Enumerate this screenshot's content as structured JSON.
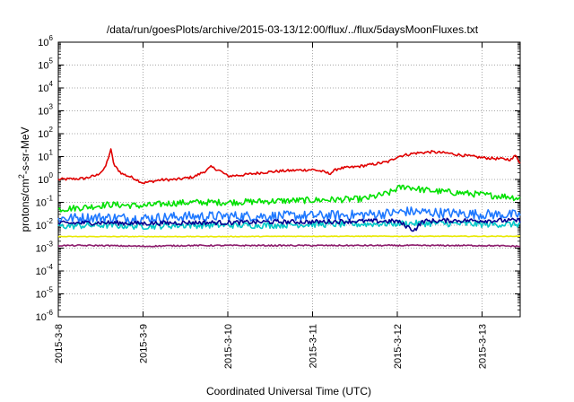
{
  "chart_data": {
    "type": "line",
    "title": "/data/run/goesPlots/archive/2015-03-13/12:00/flux/../flux/5daysMoonFluxes.txt",
    "xlabel": "Coordinated Universal Time (UTC)",
    "ylabel": {
      "prefix": "protons/cm",
      "superscript": "2",
      "suffix": "-s-sr-MeV"
    },
    "x_axis": {
      "unit": "days from 2015-03-08 00:00 UTC",
      "range": [
        0,
        5.45
      ],
      "ticks": [
        {
          "value": 0,
          "label": "2015-3-8"
        },
        {
          "value": 1,
          "label": "2015-3-9"
        },
        {
          "value": 2,
          "label": "2015-3-10"
        },
        {
          "value": 3,
          "label": "2015-3-11"
        },
        {
          "value": 4,
          "label": "2015-3-12"
        },
        {
          "value": 5,
          "label": "2015-3-13"
        }
      ]
    },
    "y_axis": {
      "scale": "log",
      "exponent_range": [
        -6,
        6
      ],
      "ticks": [
        {
          "base": "10",
          "exp": "-6"
        },
        {
          "base": "10",
          "exp": "-5"
        },
        {
          "base": "10",
          "exp": "-4"
        },
        {
          "base": "10",
          "exp": "-3"
        },
        {
          "base": "10",
          "exp": "-2"
        },
        {
          "base": "10",
          "exp": "-1"
        },
        {
          "base": "10",
          "exp": "0"
        },
        {
          "base": "10",
          "exp": "1"
        },
        {
          "base": "10",
          "exp": "2"
        },
        {
          "base": "10",
          "exp": "3"
        },
        {
          "base": "10",
          "exp": "4"
        },
        {
          "base": "10",
          "exp": "5"
        },
        {
          "base": "10",
          "exp": "6"
        }
      ]
    },
    "grid": "dotted",
    "legend": "none",
    "series": [
      {
        "color": "#e00000",
        "points": [
          [
            0,
            1.0
          ],
          [
            0.15,
            1.05
          ],
          [
            0.3,
            1.1
          ],
          [
            0.45,
            1.5
          ],
          [
            0.55,
            3.0
          ],
          [
            0.62,
            20.0
          ],
          [
            0.66,
            4.0
          ],
          [
            0.75,
            1.8
          ],
          [
            0.9,
            1.1
          ],
          [
            1.0,
            0.7
          ],
          [
            1.2,
            0.95
          ],
          [
            1.4,
            1.0
          ],
          [
            1.6,
            1.3
          ],
          [
            1.75,
            2.5
          ],
          [
            1.8,
            3.5
          ],
          [
            1.9,
            2.5
          ],
          [
            2.0,
            1.4
          ],
          [
            2.2,
            1.6
          ],
          [
            2.4,
            2.0
          ],
          [
            2.6,
            2.3
          ],
          [
            2.8,
            2.5
          ],
          [
            3.0,
            2.7
          ],
          [
            3.1,
            2.3
          ],
          [
            3.2,
            1.8
          ],
          [
            3.3,
            3.0
          ],
          [
            3.5,
            3.5
          ],
          [
            3.7,
            4.5
          ],
          [
            3.9,
            6.0
          ],
          [
            4.0,
            10.0
          ],
          [
            4.2,
            14.0
          ],
          [
            4.4,
            16.0
          ],
          [
            4.6,
            14.0
          ],
          [
            4.8,
            11.0
          ],
          [
            5.0,
            9.0
          ],
          [
            5.2,
            8.0
          ],
          [
            5.35,
            7.5
          ],
          [
            5.4,
            12.0
          ],
          [
            5.45,
            5.0
          ]
        ]
      },
      {
        "color": "#00e000",
        "points": [
          [
            0,
            0.05
          ],
          [
            0.3,
            0.06
          ],
          [
            0.6,
            0.08
          ],
          [
            1.0,
            0.07
          ],
          [
            1.3,
            0.09
          ],
          [
            1.6,
            0.1
          ],
          [
            2.0,
            0.1
          ],
          [
            2.4,
            0.11
          ],
          [
            2.8,
            0.12
          ],
          [
            3.2,
            0.13
          ],
          [
            3.6,
            0.14
          ],
          [
            3.9,
            0.25
          ],
          [
            4.0,
            0.4
          ],
          [
            4.1,
            0.5
          ],
          [
            4.3,
            0.35
          ],
          [
            4.5,
            0.3
          ],
          [
            4.8,
            0.25
          ],
          [
            5.1,
            0.2
          ],
          [
            5.3,
            0.18
          ],
          [
            5.45,
            0.15
          ]
        ]
      },
      {
        "color": "#1e78ff",
        "points": [
          [
            0,
            0.02
          ],
          [
            0.5,
            0.022
          ],
          [
            1.0,
            0.02
          ],
          [
            1.5,
            0.024
          ],
          [
            2.0,
            0.025
          ],
          [
            2.5,
            0.025
          ],
          [
            3.0,
            0.026
          ],
          [
            3.5,
            0.028
          ],
          [
            3.9,
            0.033
          ],
          [
            4.1,
            0.04
          ],
          [
            4.5,
            0.035
          ],
          [
            5.0,
            0.03
          ],
          [
            5.45,
            0.028
          ]
        ]
      },
      {
        "color": "#00c8c8",
        "points": [
          [
            0,
            0.009
          ],
          [
            0.5,
            0.01
          ],
          [
            1.0,
            0.009
          ],
          [
            1.5,
            0.01
          ],
          [
            2.0,
            0.01
          ],
          [
            2.5,
            0.01
          ],
          [
            3.0,
            0.011
          ],
          [
            3.5,
            0.011
          ],
          [
            4.0,
            0.012
          ],
          [
            4.5,
            0.012
          ],
          [
            5.0,
            0.011
          ],
          [
            5.45,
            0.011
          ]
        ]
      },
      {
        "color": "#000090",
        "points": [
          [
            0,
            0.012
          ],
          [
            0.5,
            0.013
          ],
          [
            1.0,
            0.012
          ],
          [
            1.5,
            0.013
          ],
          [
            2.0,
            0.013
          ],
          [
            2.5,
            0.014
          ],
          [
            3.0,
            0.014
          ],
          [
            3.5,
            0.015
          ],
          [
            4.0,
            0.015
          ],
          [
            4.2,
            0.006
          ],
          [
            4.3,
            0.015
          ],
          [
            4.6,
            0.016
          ],
          [
            5.0,
            0.016
          ],
          [
            5.45,
            0.016
          ]
        ]
      },
      {
        "color": "#e8e800",
        "points": [
          [
            0,
            0.0032
          ],
          [
            1.0,
            0.0032
          ],
          [
            2.0,
            0.0032
          ],
          [
            3.0,
            0.0033
          ],
          [
            4.0,
            0.0033
          ],
          [
            5.0,
            0.0033
          ],
          [
            5.45,
            0.0033
          ]
        ]
      },
      {
        "color": "#8b1a6b",
        "points": [
          [
            0,
            0.0013
          ],
          [
            0.5,
            0.0013
          ],
          [
            1.0,
            0.0012
          ],
          [
            1.5,
            0.0013
          ],
          [
            2.0,
            0.0013
          ],
          [
            2.5,
            0.0013
          ],
          [
            3.0,
            0.0013
          ],
          [
            3.5,
            0.0013
          ],
          [
            4.0,
            0.0013
          ],
          [
            4.5,
            0.0013
          ],
          [
            5.0,
            0.0013
          ],
          [
            5.45,
            0.0012
          ]
        ]
      }
    ]
  }
}
